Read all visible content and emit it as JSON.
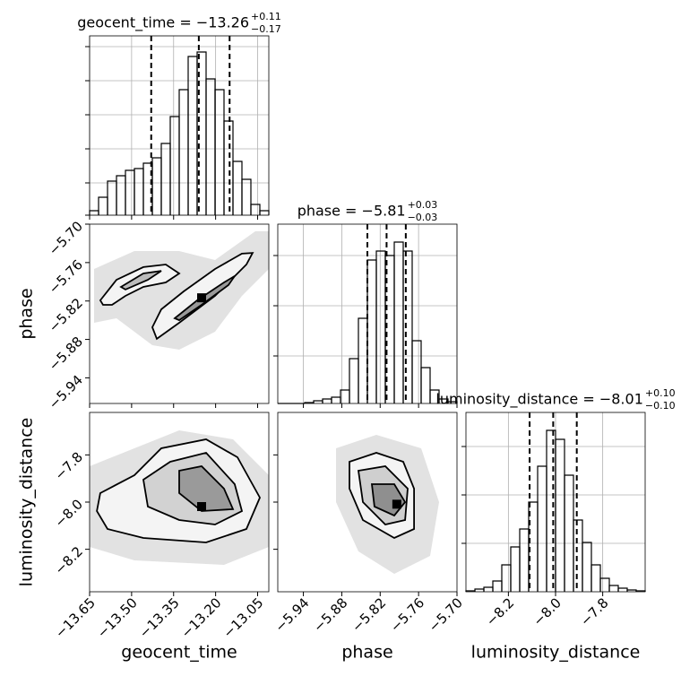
{
  "chart_data": {
    "type": "corner",
    "grid": true,
    "line_color": "#000000",
    "parameters": [
      {
        "label": "geocent_time",
        "lim": [
          -13.65,
          -13.01
        ],
        "ticks": [
          {
            "value": -13.65,
            "label": "−13.65"
          },
          {
            "value": -13.5,
            "label": "−13.50"
          },
          {
            "value": -13.35,
            "label": "−13.35"
          },
          {
            "value": -13.2,
            "label": "−13.20"
          },
          {
            "value": -13.05,
            "label": "−13.05"
          }
        ]
      },
      {
        "label": "phase",
        "lim": [
          -5.98,
          -5.7
        ],
        "ticks": [
          {
            "value": -5.94,
            "label": "−5.94"
          },
          {
            "value": -5.88,
            "label": "−5.88"
          },
          {
            "value": -5.82,
            "label": "−5.82"
          },
          {
            "value": -5.76,
            "label": "−5.76"
          },
          {
            "value": -5.7,
            "label": "−5.70"
          }
        ]
      },
      {
        "label": "luminosity_distance",
        "lim": [
          -8.38,
          -7.62
        ],
        "ticks": [
          {
            "value": -8.2,
            "label": "−8.2"
          },
          {
            "value": -8.0,
            "label": "−8.0"
          },
          {
            "value": -7.8,
            "label": "−7.8"
          }
        ]
      }
    ],
    "histograms": [
      {
        "title": "geocent_time = −13.26",
        "upper": "+0.11",
        "lower": "−0.17",
        "bins": [
          -13.65,
          -13.618,
          -13.586,
          -13.554,
          -13.522,
          -13.49,
          -13.458,
          -13.426,
          -13.394,
          -13.362,
          -13.33,
          -13.298,
          -13.266,
          -13.234,
          -13.202,
          -13.17,
          -13.138,
          -13.106,
          -13.074,
          -13.042,
          -13.01
        ],
        "counts": [
          5,
          20,
          38,
          44,
          50,
          52,
          58,
          64,
          80,
          110,
          140,
          177,
          182,
          152,
          140,
          105,
          60,
          40,
          12,
          5
        ],
        "ylim": [
          0,
          200
        ],
        "yticks": [
          0,
          36,
          74,
          112,
          150,
          188
        ],
        "quantiles": [
          -13.43,
          -13.26,
          -13.15
        ]
      },
      {
        "title": "phase = −5.81",
        "upper": "+0.03",
        "lower": "−0.03",
        "bins": [
          -5.98,
          -5.966,
          -5.952,
          -5.938,
          -5.924,
          -5.91,
          -5.896,
          -5.882,
          -5.868,
          -5.854,
          -5.84,
          -5.826,
          -5.812,
          -5.798,
          -5.784,
          -5.77,
          -5.756,
          -5.742,
          -5.728,
          -5.714,
          -5.7
        ],
        "counts": [
          0,
          0,
          0,
          1,
          3,
          5,
          7,
          15,
          50,
          95,
          160,
          170,
          165,
          180,
          170,
          70,
          40,
          15,
          5,
          2
        ],
        "ylim": [
          0,
          200
        ],
        "yticks": [
          53,
          109,
          165
        ],
        "quantiles": [
          -5.84,
          -5.81,
          -5.78
        ]
      },
      {
        "title": "luminosity_distance = −8.01",
        "upper": "+0.10",
        "lower": "−0.10",
        "bins": [
          -8.38,
          -8.342,
          -8.304,
          -8.266,
          -8.228,
          -8.19,
          -8.152,
          -8.114,
          -8.076,
          -8.038,
          -8.0,
          -7.962,
          -7.924,
          -7.886,
          -7.848,
          -7.81,
          -7.772,
          -7.734,
          -7.696,
          -7.658,
          -7.62
        ],
        "counts": [
          1,
          3,
          5,
          12,
          30,
          50,
          70,
          100,
          140,
          180,
          170,
          130,
          80,
          55,
          30,
          15,
          7,
          4,
          2,
          1
        ],
        "ylim": [
          0,
          200
        ],
        "yticks": [
          54,
          108,
          162
        ],
        "quantiles": [
          -8.11,
          -8.01,
          -7.91
        ]
      }
    ],
    "pairs": [
      {
        "contours": [
          {
            "fill": "#e2e2e2",
            "x": [
              -13.634,
              -13.49,
              -13.33,
              -13.202,
              -13.058,
              -13.01,
              -13.01,
              -13.106,
              -13.202,
              -13.33,
              -13.426,
              -13.49,
              -13.554,
              -13.634
            ],
            "y": [
              -5.77,
              -5.742,
              -5.742,
              -5.756,
              -5.711,
              -5.711,
              -5.77,
              -5.812,
              -5.868,
              -5.896,
              -5.889,
              -5.868,
              -5.847,
              -5.854
            ]
          },
          {
            "fill": "#f4f4f4",
            "line": "#000000",
            "x": [
              -13.41,
              -13.33,
              -13.202,
              -13.09,
              -13.068,
              -13.106,
              -13.202,
              -13.314,
              -13.394,
              -13.426
            ],
            "y": [
              -5.879,
              -5.854,
              -5.812,
              -5.763,
              -5.745,
              -5.746,
              -5.77,
              -5.805,
              -5.833,
              -5.861
            ]
          },
          {
            "fill": "#f4f4f4",
            "line": "#000000",
            "x": [
              -13.612,
              -13.554,
              -13.458,
              -13.378,
              -13.33,
              -13.378,
              -13.458,
              -13.522,
              -13.57,
              -13.602
            ],
            "y": [
              -5.819,
              -5.787,
              -5.767,
              -5.763,
              -5.777,
              -5.791,
              -5.798,
              -5.812,
              -5.826,
              -5.826
            ]
          },
          {
            "fill": "#999999",
            "line": "#000000",
            "x": [
              -13.346,
              -13.266,
              -13.17,
              -13.132,
              -13.154,
              -13.25,
              -13.33
            ],
            "y": [
              -5.847,
              -5.819,
              -5.791,
              -5.781,
              -5.795,
              -5.826,
              -5.85
            ]
          },
          {
            "fill": "#bbbbbb",
            "line": "#000000",
            "x": [
              -13.538,
              -13.458,
              -13.394,
              -13.442,
              -13.522
            ],
            "y": [
              -5.798,
              -5.777,
              -5.773,
              -5.787,
              -5.802
            ]
          }
        ],
        "peak": {
          "x": -13.25,
          "y": -5.815
        }
      },
      {
        "contours": [
          {
            "fill": "#e2e2e2",
            "x": [
              -13.65,
              -13.49,
              -13.33,
              -13.138,
              -13.01,
              -13.01,
              -13.17,
              -13.49,
              -13.65
            ],
            "y": [
              -7.848,
              -7.772,
              -7.696,
              -7.734,
              -7.886,
              -8.19,
              -8.266,
              -8.247,
              -8.19
            ]
          },
          {
            "fill": "#f4f4f4",
            "line": "#000000",
            "x": [
              -13.612,
              -13.49,
              -13.394,
              -13.234,
              -13.122,
              -13.042,
              -13.09,
              -13.234,
              -13.458,
              -13.586,
              -13.624
            ],
            "y": [
              -7.962,
              -7.886,
              -7.772,
              -7.734,
              -7.81,
              -7.981,
              -8.114,
              -8.171,
              -8.152,
              -8.114,
              -8.038
            ]
          },
          {
            "fill": "#d2d2d2",
            "line": "#000000",
            "x": [
              -13.458,
              -13.362,
              -13.234,
              -13.132,
              -13.106,
              -13.202,
              -13.33,
              -13.442
            ],
            "y": [
              -7.905,
              -7.829,
              -7.791,
              -7.924,
              -8.038,
              -8.095,
              -8.076,
              -8.019
            ]
          },
          {
            "fill": "#9a9a9a",
            "line": "#000000",
            "x": [
              -13.33,
              -13.25,
              -13.17,
              -13.138,
              -13.25,
              -13.33
            ],
            "y": [
              -7.867,
              -7.848,
              -7.943,
              -8.03,
              -8.038,
              -7.962
            ]
          }
        ],
        "peak": {
          "x": -13.25,
          "y": -8.019
        }
      },
      {
        "contours": [
          {
            "fill": "#e2e2e2",
            "x": [
              -5.889,
              -5.826,
              -5.756,
              -5.728,
              -5.742,
              -5.798,
              -5.854,
              -5.889
            ],
            "y": [
              -7.772,
              -7.715,
              -7.772,
              -8.0,
              -8.228,
              -8.304,
              -8.209,
              -8.0
            ]
          },
          {
            "fill": "#f4f4f4",
            "line": "#000000",
            "x": [
              -5.868,
              -5.826,
              -5.784,
              -5.767,
              -5.767,
              -5.798,
              -5.847,
              -5.868
            ],
            "y": [
              -7.829,
              -7.791,
              -7.829,
              -7.943,
              -8.114,
              -8.152,
              -8.076,
              -7.943
            ]
          },
          {
            "fill": "#cfcfcf",
            "line": "#000000",
            "x": [
              -5.854,
              -5.812,
              -5.777,
              -5.781,
              -5.812,
              -5.847
            ],
            "y": [
              -7.867,
              -7.848,
              -7.943,
              -8.076,
              -8.095,
              -8.0
            ]
          },
          {
            "fill": "#8f8f8f",
            "line": "#000000",
            "x": [
              -5.833,
              -5.798,
              -5.781,
              -5.798,
              -5.829
            ],
            "y": [
              -7.924,
              -7.924,
              -8.0,
              -8.057,
              -8.019
            ]
          }
        ],
        "peak": {
          "x": -5.794,
          "y": -8.009
        }
      }
    ]
  }
}
